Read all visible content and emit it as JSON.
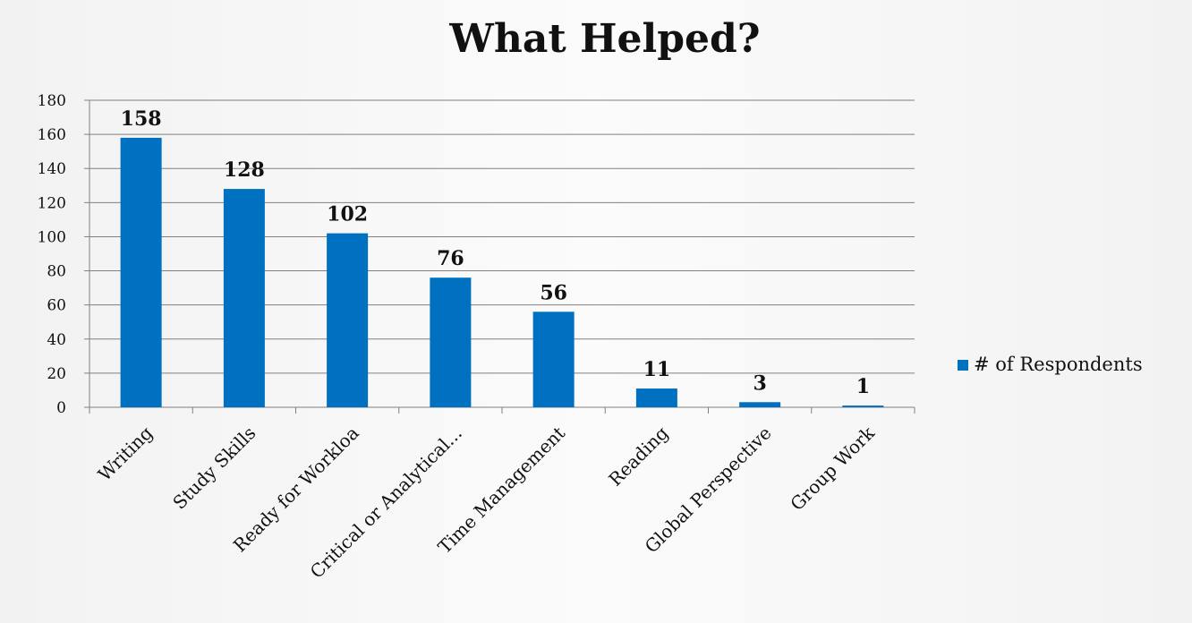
{
  "chart_data": {
    "type": "bar",
    "title": "What Helped?",
    "xlabel": "",
    "ylabel": "",
    "categories": [
      "Writing",
      "Study Skills",
      "Ready for Workloa",
      "Critical or Analytical...",
      "Time Management",
      "Reading",
      "Global Perspective",
      "Group Work"
    ],
    "series": [
      {
        "name": "# of Respondents",
        "values": [
          158,
          128,
          102,
          76,
          56,
          11,
          3,
          1
        ],
        "color": "#0070c0"
      }
    ],
    "data_labels": [
      "158",
      "128",
      "102",
      "76",
      "56",
      "11",
      "3",
      "1"
    ],
    "ylim": [
      0,
      180
    ],
    "yticks": [
      "0",
      "20",
      "40",
      "60",
      "80",
      "100",
      "120",
      "140",
      "160",
      "180"
    ],
    "grid": true,
    "legend_position": "right"
  }
}
